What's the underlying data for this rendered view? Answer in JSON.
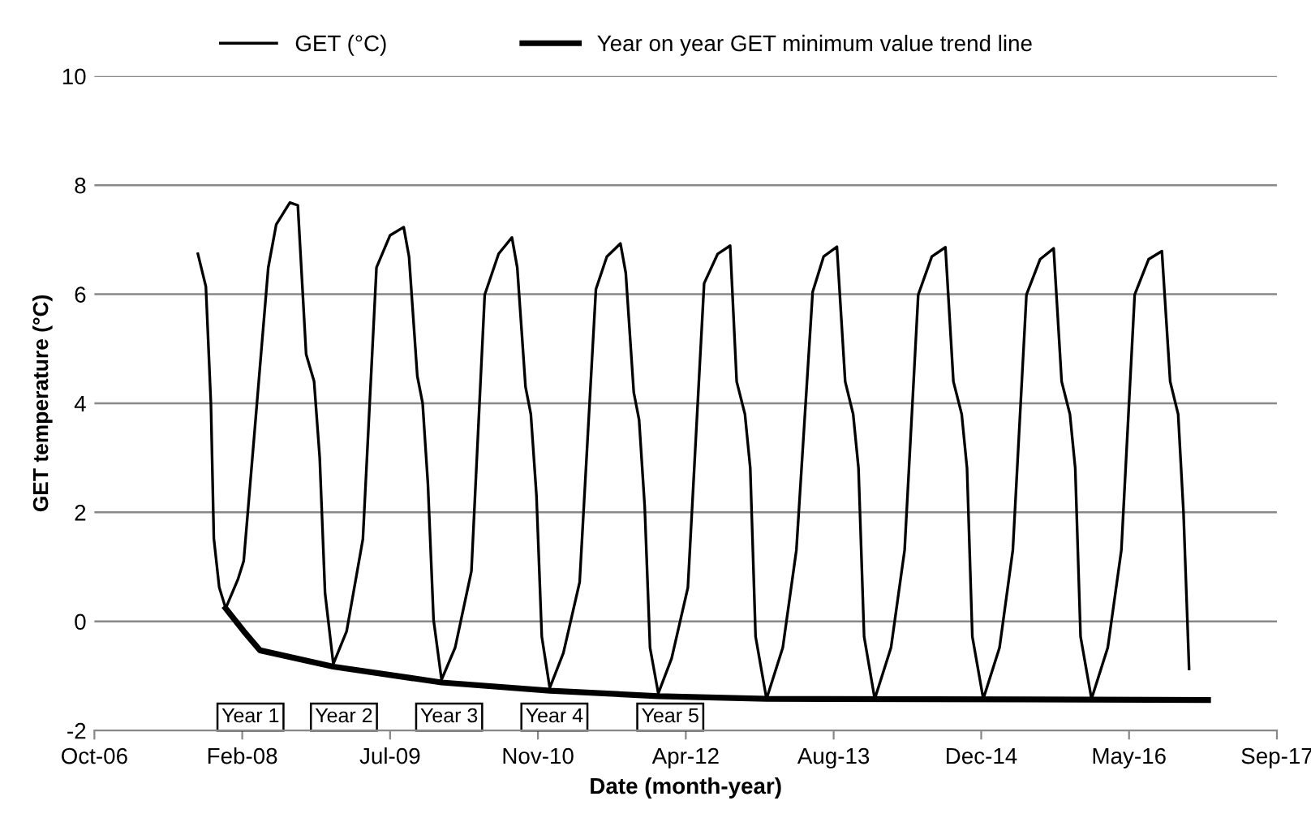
{
  "chart_data": {
    "type": "line",
    "xlabel": "Date (month-year)",
    "ylabel": "GET temperature (°C)",
    "xlim": [
      "2006-10-15",
      "2017-09-26"
    ],
    "xticks": [
      {
        "value": "2006-10-15",
        "label": "Oct-06"
      },
      {
        "value": "2008-02-27",
        "label": "Feb-08"
      },
      {
        "value": "2009-07-11",
        "label": "Jul-09"
      },
      {
        "value": "2010-11-23",
        "label": "Nov-10"
      },
      {
        "value": "2012-04-06",
        "label": "Apr-12"
      },
      {
        "value": "2013-08-19",
        "label": "Aug-13"
      },
      {
        "value": "2014-12-31",
        "label": "Dec-14"
      },
      {
        "value": "2016-05-14",
        "label": "May-16"
      },
      {
        "value": "2017-09-26",
        "label": "Sep-17"
      }
    ],
    "ylim": [
      -2,
      10
    ],
    "yticks": [
      -2,
      0,
      2,
      4,
      6,
      8,
      10
    ],
    "grid": "y",
    "legend": "top",
    "marker": "none",
    "series": [
      {
        "name": "GET (°C)",
        "color": "#000000",
        "x": [
          "2007-09-30",
          "2007-10-27",
          "2007-11-13",
          "2007-11-23",
          "2007-12-11",
          "2008-01-02",
          "2008-02-13",
          "2008-03-03",
          "2008-04-09",
          "2008-05-25",
          "2008-06-21",
          "2008-08-06",
          "2008-09-02",
          "2008-09-30",
          "2008-10-27",
          "2008-11-15",
          "2008-12-03",
          "2008-12-31",
          "2009-02-14",
          "2009-04-10",
          "2009-05-26",
          "2009-07-11",
          "2009-08-26",
          "2009-09-13",
          "2009-10-11",
          "2009-10-29",
          "2009-11-16",
          "2009-12-05",
          "2010-01-01",
          "2010-02-16",
          "2010-04-12",
          "2010-05-27",
          "2010-07-13",
          "2010-08-27",
          "2010-09-14",
          "2010-10-12",
          "2010-10-30",
          "2010-11-18",
          "2010-12-06",
          "2011-01-02",
          "2011-02-17",
          "2011-04-13",
          "2011-06-07",
          "2011-07-14",
          "2011-08-29",
          "2011-09-16",
          "2011-10-13",
          "2011-10-31",
          "2011-11-19",
          "2011-12-07",
          "2012-01-04",
          "2012-02-18",
          "2012-04-13",
          "2012-06-07",
          "2012-07-23",
          "2012-09-03",
          "2012-09-25",
          "2012-10-23",
          "2012-11-10",
          "2012-11-28",
          "2013-01-04",
          "2013-02-28",
          "2013-04-15",
          "2013-06-09",
          "2013-07-16",
          "2013-08-30",
          "2013-09-27",
          "2013-10-24",
          "2013-11-11",
          "2013-11-30",
          "2014-01-05",
          "2014-03-01",
          "2014-04-16",
          "2014-06-01",
          "2014-07-17",
          "2014-09-01",
          "2014-09-28",
          "2014-10-26",
          "2014-11-13",
          "2014-12-01",
          "2015-01-07",
          "2015-03-03",
          "2015-04-17",
          "2015-06-02",
          "2015-07-18",
          "2015-09-02",
          "2015-09-29",
          "2015-10-27",
          "2015-11-14",
          "2015-12-02",
          "2016-01-08",
          "2016-03-03",
          "2016-04-18",
          "2016-06-02",
          "2016-07-19",
          "2016-09-02",
          "2016-09-30",
          "2016-10-27",
          "2016-11-14",
          "2016-12-03"
        ],
        "values": [
          6.74,
          6.14,
          4.0,
          1.52,
          0.63,
          0.24,
          0.78,
          1.11,
          3.5,
          6.49,
          7.28,
          7.68,
          7.63,
          4.9,
          4.4,
          3.0,
          0.52,
          -0.78,
          -0.18,
          1.51,
          6.49,
          7.08,
          7.23,
          6.69,
          4.5,
          4.0,
          2.51,
          0.03,
          -1.07,
          -0.48,
          0.92,
          5.99,
          6.74,
          7.04,
          6.49,
          4.3,
          3.8,
          2.31,
          -0.28,
          -1.22,
          -0.58,
          0.72,
          6.09,
          6.69,
          6.93,
          6.39,
          4.2,
          3.7,
          2.11,
          -0.48,
          -1.32,
          -0.68,
          0.62,
          6.2,
          6.74,
          6.89,
          4.4,
          3.8,
          2.81,
          -0.28,
          -1.42,
          -0.48,
          1.31,
          6.04,
          6.69,
          6.87,
          4.4,
          3.8,
          2.81,
          -0.28,
          -1.42,
          -0.48,
          1.31,
          5.99,
          6.69,
          6.86,
          4.4,
          3.8,
          2.81,
          -0.28,
          -1.42,
          -0.48,
          1.31,
          5.99,
          6.64,
          6.84,
          4.4,
          3.8,
          2.81,
          -0.28,
          -1.42,
          -0.48,
          1.31,
          5.99,
          6.64,
          6.79,
          4.4,
          3.8,
          2.01,
          -0.87
        ]
      },
      {
        "name": "Year on year GET minimum value trend line",
        "color": "#000000",
        "x": [
          "2008-01-02",
          "2008-03-03",
          "2008-04-27",
          "2008-12-31",
          "2010-01-01",
          "2011-01-02",
          "2012-01-04",
          "2013-01-04",
          "2017-02-05"
        ],
        "values": [
          0.24,
          -0.18,
          -0.53,
          -0.83,
          -1.12,
          -1.27,
          -1.37,
          -1.42,
          -1.44
        ]
      }
    ],
    "annotations": [
      "Year 1",
      "Year 2",
      "Year 3",
      "Year 4",
      "Year 5"
    ]
  }
}
